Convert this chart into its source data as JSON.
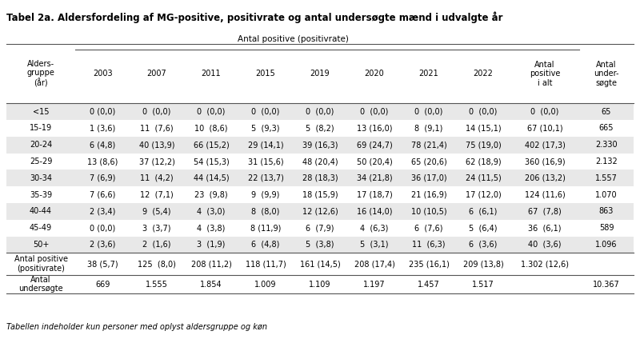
{
  "title": "Tabel 2a. Aldersfordeling af MG-positive, positivrate og antal undersøgte mænd i udvalgte år",
  "subtitle": "Antal positive (positivrate)",
  "col_headers": [
    "Alders-\ngruppe\n(år)",
    "2003",
    "2007",
    "2011",
    "2015",
    "2019",
    "2020",
    "2021",
    "2022",
    "Antal\npositive\ni alt",
    "Antal\nunder-\nsøgte"
  ],
  "rows": [
    [
      "<15",
      "0 (0,0)",
      "0  (0,0)",
      "0  (0,0)",
      "0  (0,0)",
      "0  (0,0)",
      "0  (0,0)",
      "0  (0,0)",
      "0  (0,0)",
      "0  (0,0)",
      "65"
    ],
    [
      "15-19",
      "1 (3,6)",
      "11  (7,6)",
      "10  (8,6)",
      "5  (9,3)",
      "5  (8,2)",
      "13 (16,0)",
      "8  (9,1)",
      "14 (15,1)",
      "67 (10,1)",
      "665"
    ],
    [
      "20-24",
      "6 (4,8)",
      "40 (13,9)",
      "66 (15,2)",
      "29 (14,1)",
      "39 (16,3)",
      "69 (24,7)",
      "78 (21,4)",
      "75 (19,0)",
      "402 (17,3)",
      "2.330"
    ],
    [
      "25-29",
      "13 (8,6)",
      "37 (12,2)",
      "54 (15,3)",
      "31 (15,6)",
      "48 (20,4)",
      "50 (20,4)",
      "65 (20,6)",
      "62 (18,9)",
      "360 (16,9)",
      "2.132"
    ],
    [
      "30-34",
      "7 (6,9)",
      "11  (4,2)",
      "44 (14,5)",
      "22 (13,7)",
      "28 (18,3)",
      "34 (21,8)",
      "36 (17,0)",
      "24 (11,5)",
      "206 (13,2)",
      "1.557"
    ],
    [
      "35-39",
      "7 (6,6)",
      "12  (7,1)",
      "23  (9,8)",
      "9  (9,9)",
      "18 (15,9)",
      "17 (18,7)",
      "21 (16,9)",
      "17 (12,0)",
      "124 (11,6)",
      "1.070"
    ],
    [
      "40-44",
      "2 (3,4)",
      "9  (5,4)",
      "4  (3,0)",
      "8  (8,0)",
      "12 (12,6)",
      "16 (14,0)",
      "10 (10,5)",
      "6  (6,1)",
      "67  (7,8)",
      "863"
    ],
    [
      "45-49",
      "0 (0,0)",
      "3  (3,7)",
      "4  (3,8)",
      "8 (11,9)",
      "6  (7,9)",
      "4  (6,3)",
      "6  (7,6)",
      "5  (6,4)",
      "36  (6,1)",
      "589"
    ],
    [
      "50+",
      "2 (3,6)",
      "2  (1,6)",
      "3  (1,9)",
      "6  (4,8)",
      "5  (3,8)",
      "5  (3,1)",
      "11  (6,3)",
      "6  (3,6)",
      "40  (3,6)",
      "1.096"
    ]
  ],
  "footer_rows": [
    [
      "Antal positive\n(positivrate)",
      "38 (5,7)",
      "125  (8,0)",
      "208 (11,2)",
      "118 (11,7)",
      "161 (14,5)",
      "208 (17,4)",
      "235 (16,1)",
      "209 (13,8)",
      "1.302 (12,6)",
      ""
    ],
    [
      "Antal\nundersøgte",
      "669",
      "1.555",
      "1.854",
      "1.009",
      "1.109",
      "1.197",
      "1.457",
      "1.517",
      "",
      "10.367"
    ]
  ],
  "footnote": "Tabellen indeholder kun personer med oplyst aldersgruppe og køn",
  "bg_color": "#ffffff",
  "stripe_color": "#e8e8e8",
  "header_line_color": "#555555",
  "text_color": "#000000",
  "title_color": "#000000"
}
